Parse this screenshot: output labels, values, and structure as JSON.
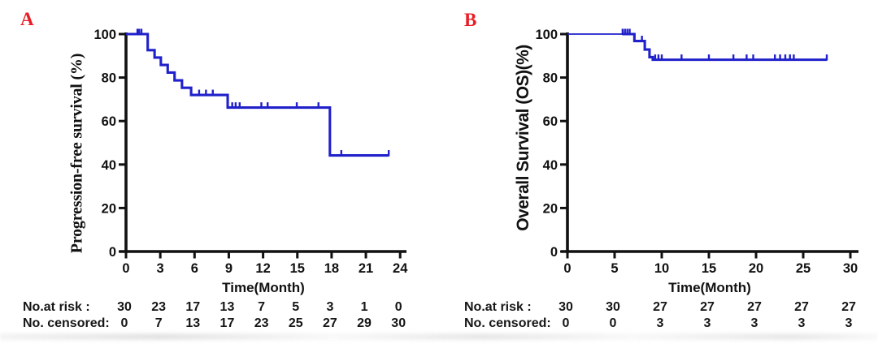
{
  "figure": {
    "background": "#ffffff",
    "curve_color": "#2121cb",
    "axis_color": "#111111",
    "panel_letter_color": "#e81e25",
    "text_color": "#161616"
  },
  "chart_data": [
    {
      "panel": "A",
      "type": "line",
      "subtype": "kaplan_meier_step",
      "title": "",
      "ylabel": "Progression-free survival (%)",
      "xlabel": "Time(Month)",
      "ylim": [
        0,
        100
      ],
      "xlim": [
        0,
        24.6
      ],
      "y_ticks": [
        0,
        20,
        40,
        60,
        80,
        100
      ],
      "x_ticks": [
        0,
        3,
        6,
        9,
        12,
        15,
        18,
        21,
        24
      ],
      "grid": false,
      "legend": "none",
      "line_color": "#2121cb",
      "steps": [
        [
          0,
          100
        ],
        [
          1.9,
          92.6
        ],
        [
          2.5,
          89.2
        ],
        [
          3.05,
          85.8
        ],
        [
          3.65,
          82.3
        ],
        [
          4.25,
          78.7
        ],
        [
          4.9,
          75.3
        ],
        [
          5.7,
          72.0
        ],
        [
          8.9,
          66.2
        ],
        [
          17.85,
          44.2
        ]
      ],
      "end_time": 23.0,
      "censors": [
        [
          1.0,
          100
        ],
        [
          1.15,
          100
        ],
        [
          1.35,
          100
        ],
        [
          6.4,
          72.0
        ],
        [
          7.0,
          72.0
        ],
        [
          7.6,
          72.0
        ],
        [
          9.3,
          66.2
        ],
        [
          9.6,
          66.2
        ],
        [
          9.95,
          66.2
        ],
        [
          11.85,
          66.2
        ],
        [
          12.4,
          66.2
        ],
        [
          14.95,
          66.2
        ],
        [
          16.85,
          66.2
        ],
        [
          18.85,
          44.2
        ],
        [
          23.0,
          44.2
        ]
      ],
      "at_risk_label": "No.at risk :",
      "at_risk": [
        30,
        23,
        17,
        13,
        7,
        5,
        3,
        1,
        0
      ],
      "censored_label": "No. censored:",
      "censored": [
        0,
        7,
        13,
        17,
        23,
        25,
        27,
        29,
        30
      ]
    },
    {
      "panel": "B",
      "type": "line",
      "subtype": "kaplan_meier_step",
      "title": "",
      "ylabel": "Overall Survival (OS)(%)",
      "xlabel": "Time(Month)",
      "ylim": [
        0,
        100
      ],
      "xlim": [
        0,
        30.9
      ],
      "y_ticks": [
        0,
        20,
        40,
        60,
        80,
        100
      ],
      "x_ticks": [
        0,
        5,
        10,
        15,
        20,
        25,
        30
      ],
      "grid": false,
      "legend": "none",
      "line_color": "#2121cb",
      "steps": [
        [
          0,
          100
        ],
        [
          7.1,
          96.8
        ],
        [
          8.2,
          92.9
        ],
        [
          8.7,
          89.4
        ],
        [
          9.05,
          88.2
        ]
      ],
      "end_time": 27.5,
      "censors": [
        [
          5.85,
          100
        ],
        [
          6.1,
          100
        ],
        [
          6.35,
          100
        ],
        [
          6.6,
          100
        ],
        [
          7.9,
          96.8
        ],
        [
          9.3,
          88.2
        ],
        [
          9.65,
          88.2
        ],
        [
          10.0,
          88.2
        ],
        [
          12.1,
          88.2
        ],
        [
          15.0,
          88.2
        ],
        [
          17.6,
          88.2
        ],
        [
          19.0,
          88.2
        ],
        [
          19.7,
          88.2
        ],
        [
          22.0,
          88.2
        ],
        [
          22.55,
          88.2
        ],
        [
          23.1,
          88.2
        ],
        [
          23.6,
          88.2
        ],
        [
          24.0,
          88.2
        ],
        [
          27.5,
          88.2
        ]
      ],
      "at_risk_label": "No.at risk :",
      "at_risk": [
        30,
        30,
        27,
        27,
        27,
        27,
        27
      ],
      "censored_label": "No. censored:",
      "censored": [
        0,
        0,
        3,
        3,
        3,
        3,
        3
      ]
    }
  ]
}
